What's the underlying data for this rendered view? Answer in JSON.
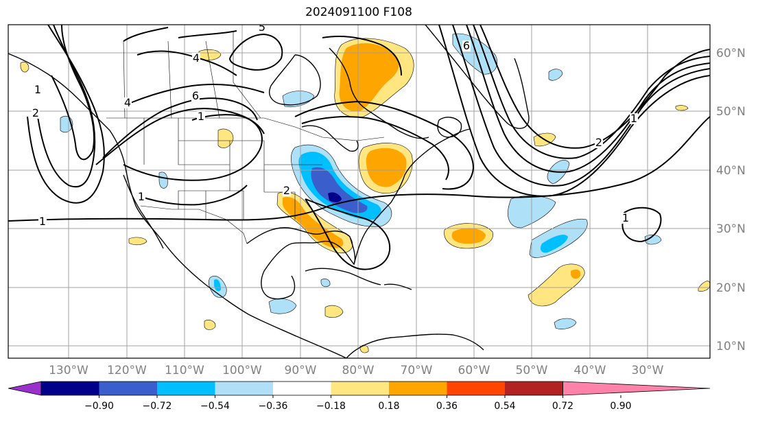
{
  "title": "2024091100 F108",
  "axes": {
    "lon_ticks": [
      "130°W",
      "120°W",
      "110°W",
      "100°W",
      "90°W",
      "80°W",
      "70°W",
      "60°W",
      "50°W",
      "40°W",
      "30°W"
    ],
    "lat_ticks": [
      "60°N",
      "50°N",
      "40°N",
      "30°N",
      "20°N",
      "10°N"
    ]
  },
  "colorbar": {
    "labels": [
      "−0.90",
      "−0.72",
      "−0.54",
      "−0.36",
      "−0.18",
      "0.18",
      "0.36",
      "0.54",
      "0.72",
      "0.90"
    ],
    "colors": [
      "#9932cc",
      "#00008b",
      "#3a5fcd",
      "#00bfff",
      "#b0e0f8",
      "#ffffff",
      "#ffe680",
      "#ffa500",
      "#ff4500",
      "#b22222",
      "#ff82ab"
    ]
  },
  "shading_colors": {
    "light_blue": "#aee0f8",
    "blue": "#00bfff",
    "mid_blue": "#3a5fcd",
    "dark_blue": "#00008b",
    "light_yellow": "#ffe680",
    "orange": "#ffa500"
  },
  "contour_labels": [
    "1",
    "2",
    "4",
    "6",
    "5",
    "1",
    "1",
    "2",
    "1",
    "6",
    "1",
    "4",
    "2",
    "1"
  ]
}
